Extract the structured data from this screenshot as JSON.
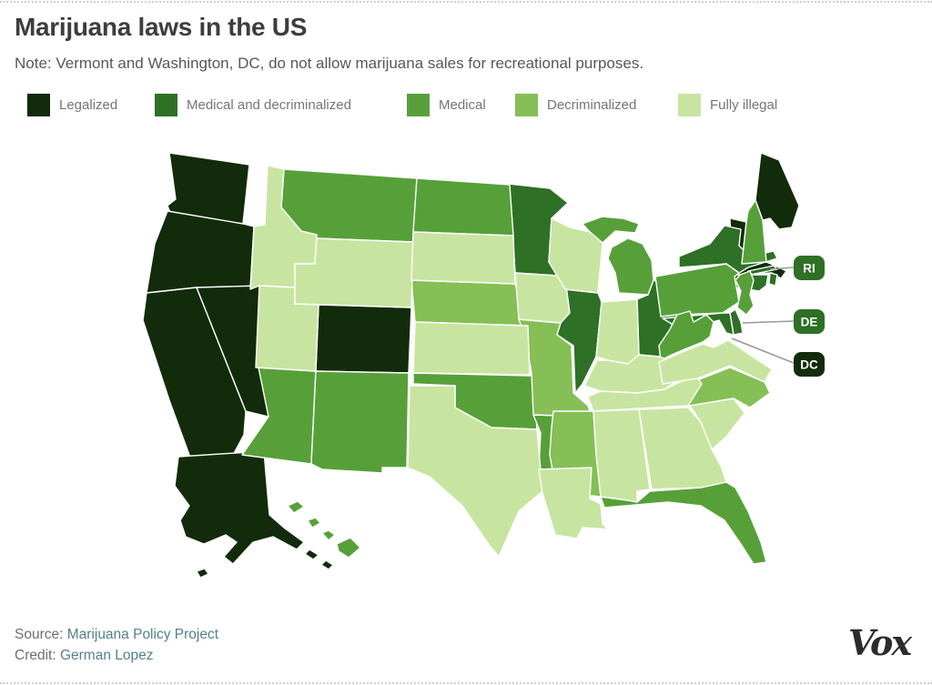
{
  "header": {
    "title": "Marijuana laws in the US",
    "note": "Note: Vermont and Washington, DC, do not allow marijuana sales for recreational purposes."
  },
  "legend": {
    "items": [
      {
        "key": "legalized",
        "label": "Legalized"
      },
      {
        "key": "medical_decriminalized",
        "label": "Medical and decriminalized"
      },
      {
        "key": "medical",
        "label": "Medical"
      },
      {
        "key": "decriminalized",
        "label": "Decriminalized"
      },
      {
        "key": "fully_illegal",
        "label": "Fully illegal"
      }
    ]
  },
  "chart_data": {
    "type": "choropleth",
    "title": "Marijuana laws in the US",
    "region": "United States, by state",
    "categories": [
      "Legalized",
      "Medical and decriminalized",
      "Medical",
      "Decriminalized",
      "Fully illegal"
    ],
    "colors": {
      "legalized": "#122b0a",
      "medical_decriminalized": "#2e7026",
      "medical": "#57a039",
      "decriminalized": "#85bf55",
      "fully_illegal": "#c7e5a0"
    },
    "state_border_color": "#ffffff",
    "callout_line_color": "#999999",
    "states": [
      {
        "id": "WA",
        "name": "Washington",
        "status": "legalized"
      },
      {
        "id": "OR",
        "name": "Oregon",
        "status": "legalized"
      },
      {
        "id": "CA",
        "name": "California",
        "status": "legalized"
      },
      {
        "id": "NV",
        "name": "Nevada",
        "status": "legalized"
      },
      {
        "id": "AK",
        "name": "Alaska",
        "status": "legalized"
      },
      {
        "id": "CO",
        "name": "Colorado",
        "status": "legalized"
      },
      {
        "id": "ME",
        "name": "Maine",
        "status": "legalized"
      },
      {
        "id": "VT",
        "name": "Vermont",
        "status": "legalized"
      },
      {
        "id": "MA",
        "name": "Massachusetts",
        "status": "legalized"
      },
      {
        "id": "DC",
        "name": "Washington, DC",
        "status": "legalized"
      },
      {
        "id": "MN",
        "name": "Minnesota",
        "status": "medical_decriminalized"
      },
      {
        "id": "IL",
        "name": "Illinois",
        "status": "medical_decriminalized"
      },
      {
        "id": "OH",
        "name": "Ohio",
        "status": "medical_decriminalized"
      },
      {
        "id": "NY",
        "name": "New York",
        "status": "medical_decriminalized"
      },
      {
        "id": "CT",
        "name": "Connecticut",
        "status": "medical_decriminalized"
      },
      {
        "id": "RI",
        "name": "Rhode Island",
        "status": "medical_decriminalized"
      },
      {
        "id": "DE",
        "name": "Delaware",
        "status": "medical_decriminalized"
      },
      {
        "id": "MD",
        "name": "Maryland",
        "status": "medical_decriminalized"
      },
      {
        "id": "MT",
        "name": "Montana",
        "status": "medical"
      },
      {
        "id": "ND",
        "name": "North Dakota",
        "status": "medical"
      },
      {
        "id": "AZ",
        "name": "Arizona",
        "status": "medical"
      },
      {
        "id": "NM",
        "name": "New Mexico",
        "status": "medical"
      },
      {
        "id": "OK",
        "name": "Oklahoma",
        "status": "medical"
      },
      {
        "id": "AR",
        "name": "Arkansas",
        "status": "medical"
      },
      {
        "id": "FL",
        "name": "Florida",
        "status": "medical"
      },
      {
        "id": "MI",
        "name": "Michigan",
        "status": "medical"
      },
      {
        "id": "PA",
        "name": "Pennsylvania",
        "status": "medical"
      },
      {
        "id": "WV",
        "name": "West Virginia",
        "status": "medical"
      },
      {
        "id": "NJ",
        "name": "New Jersey",
        "status": "medical"
      },
      {
        "id": "NH",
        "name": "New Hampshire",
        "status": "medical"
      },
      {
        "id": "HI",
        "name": "Hawaii",
        "status": "medical"
      },
      {
        "id": "NE",
        "name": "Nebraska",
        "status": "decriminalized"
      },
      {
        "id": "MO",
        "name": "Missouri",
        "status": "decriminalized"
      },
      {
        "id": "MS",
        "name": "Mississippi",
        "status": "decriminalized"
      },
      {
        "id": "NC",
        "name": "North Carolina",
        "status": "decriminalized"
      },
      {
        "id": "ID",
        "name": "Idaho",
        "status": "fully_illegal"
      },
      {
        "id": "UT",
        "name": "Utah",
        "status": "fully_illegal"
      },
      {
        "id": "WY",
        "name": "Wyoming",
        "status": "fully_illegal"
      },
      {
        "id": "SD",
        "name": "South Dakota",
        "status": "fully_illegal"
      },
      {
        "id": "KS",
        "name": "Kansas",
        "status": "fully_illegal"
      },
      {
        "id": "TX",
        "name": "Texas",
        "status": "fully_illegal"
      },
      {
        "id": "IA",
        "name": "Iowa",
        "status": "fully_illegal"
      },
      {
        "id": "WI",
        "name": "Wisconsin",
        "status": "fully_illegal"
      },
      {
        "id": "IN",
        "name": "Indiana",
        "status": "fully_illegal"
      },
      {
        "id": "KY",
        "name": "Kentucky",
        "status": "fully_illegal"
      },
      {
        "id": "TN",
        "name": "Tennessee",
        "status": "fully_illegal"
      },
      {
        "id": "VA",
        "name": "Virginia",
        "status": "fully_illegal"
      },
      {
        "id": "SC",
        "name": "South Carolina",
        "status": "fully_illegal"
      },
      {
        "id": "GA",
        "name": "Georgia",
        "status": "fully_illegal"
      },
      {
        "id": "AL",
        "name": "Alabama",
        "status": "fully_illegal"
      },
      {
        "id": "LA",
        "name": "Louisiana",
        "status": "fully_illegal"
      }
    ],
    "callouts": [
      {
        "label": "RI",
        "status": "medical_decriminalized"
      },
      {
        "label": "DE",
        "status": "medical_decriminalized"
      },
      {
        "label": "DC",
        "status": "legalized"
      }
    ]
  },
  "footer": {
    "source_label": "Source:",
    "source_link": "Marijuana Policy Project",
    "credit_label": "Credit:",
    "credit_link": "German Lopez",
    "logo": "Vox"
  },
  "styles": {
    "link_color": "#54808e",
    "title_color": "#3d3d3d",
    "note_color": "#575757",
    "legend_text_color": "#757575"
  }
}
